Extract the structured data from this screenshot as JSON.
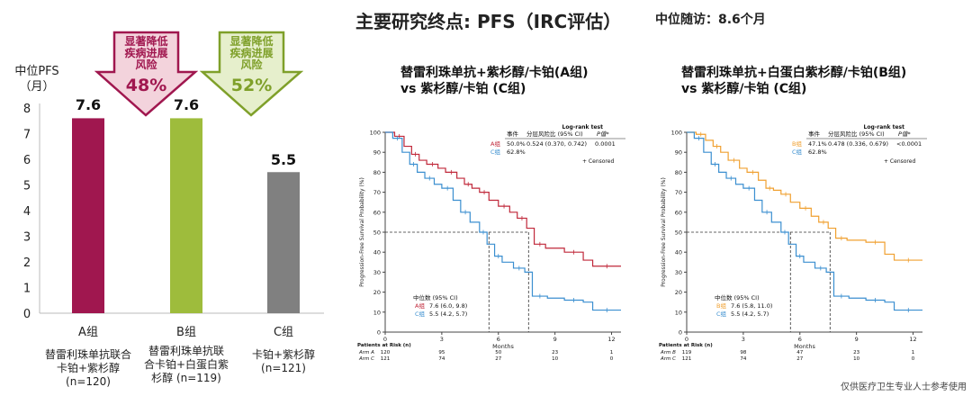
{
  "header": {
    "title": "主要研究终点: PFS（IRC评估）",
    "followup": "中位随访：8.6个月"
  },
  "bar_panel": {
    "ylabel_line1": "中位PFS",
    "ylabel_line2": "（月）",
    "arrows": [
      {
        "text1": "显著降低",
        "text2": "疾病进展",
        "text3": "风险",
        "pct": "48%",
        "color": "#a0174f",
        "fill": "#f3d3dc"
      },
      {
        "text1": "显著降低",
        "text2": "疾病进展",
        "text3": "风险",
        "pct": "52%",
        "color": "#7fa02a",
        "fill": "#e6efcc"
      }
    ],
    "groups": [
      {
        "label": "A组",
        "value_label": "7.6",
        "desc1": "替雷利珠单抗联合",
        "desc2": "卡铂+紫杉醇",
        "desc3": "(n=120)"
      },
      {
        "label": "B组",
        "value_label": "7.6",
        "desc1": "替雷利珠单抗联",
        "desc2": "合卡铂+白蛋白紫",
        "desc3": "杉醇 (n=119)"
      },
      {
        "label": "C组",
        "value_label": "5.5",
        "desc1": "卡铂+紫杉醇",
        "desc2": "(n=121)",
        "desc3": ""
      }
    ]
  },
  "chart_data": [
    {
      "type": "bar",
      "categories": [
        "A组",
        "B组",
        "C组"
      ],
      "values": [
        7.6,
        7.6,
        5.5
      ],
      "colors": [
        "#a0174f",
        "#9ebc3c",
        "#808080"
      ],
      "ylabel": "中位PFS（月）",
      "ylim": [
        0,
        8
      ],
      "yticks": [
        0,
        1,
        2,
        3,
        4,
        5,
        6,
        7,
        8
      ],
      "grid": false
    },
    {
      "type": "line",
      "title_line1": "替雷利珠单抗+紫杉醇/卡铂(A组)",
      "title_line2": "vs 紫杉醇/卡铂 (C组)",
      "xlabel": "Months",
      "ylabel": "Progression-Free Survival Probability (%)",
      "xlim": [
        0,
        12.5
      ],
      "ylim": [
        0,
        100
      ],
      "xticks": [
        0,
        3,
        6,
        9,
        12
      ],
      "yticks": [
        0,
        10,
        20,
        30,
        40,
        50,
        60,
        70,
        80,
        90,
        100
      ],
      "median_line_y": 50,
      "median_x": [
        5.5,
        7.6
      ],
      "stats_header": [
        "事件",
        "分层风险比 (95% CI)",
        "Log-rank test",
        "P值*"
      ],
      "stats_rows": [
        {
          "group": "A组",
          "events": "50.0%",
          "hr": "0.524 (0.370, 0.742)",
          "p": "0.0001"
        },
        {
          "group": "C组",
          "events": "62.8%",
          "hr": "",
          "p": ""
        }
      ],
      "censored_label": "Censored",
      "median_header": "中位数 (95% CI)",
      "median_rows": [
        {
          "group": "A组",
          "value": "7.6 (6.0, 9.8)"
        },
        {
          "group": "C组",
          "value": "5.5 (4.2, 5.7)"
        }
      ],
      "risk_header": "Patients at Risk (n)",
      "risk_rows": [
        {
          "name": "Arm A",
          "values": [
            "120",
            "95",
            "50",
            "23",
            "1"
          ]
        },
        {
          "name": "Arm C",
          "values": [
            "121",
            "74",
            "27",
            "10",
            "0"
          ]
        }
      ],
      "series": [
        {
          "name": "A组",
          "color": "#c0283a",
          "x": [
            0,
            0.5,
            1.0,
            1.4,
            1.8,
            2.2,
            2.8,
            3.2,
            3.8,
            4.2,
            4.6,
            5.0,
            5.5,
            6.0,
            6.6,
            7.0,
            7.5,
            7.9,
            8.5,
            9.5,
            10.5,
            11.0,
            12.5
          ],
          "y": [
            100,
            98,
            93,
            89,
            86,
            84,
            82,
            80,
            77,
            74,
            72,
            70,
            66,
            63,
            60,
            57,
            52,
            44,
            42,
            40,
            36,
            33,
            33
          ]
        },
        {
          "name": "C组",
          "color": "#3b8fd0",
          "x": [
            0,
            0.4,
            0.9,
            1.3,
            1.7,
            2.1,
            2.6,
            3.0,
            3.6,
            4.0,
            4.5,
            5.0,
            5.4,
            5.8,
            6.2,
            6.8,
            7.4,
            7.8,
            8.6,
            9.5,
            10.5,
            11.0,
            12.5
          ],
          "y": [
            100,
            97,
            90,
            84,
            80,
            77,
            74,
            72,
            66,
            60,
            55,
            50,
            44,
            38,
            35,
            32,
            30,
            18,
            17,
            16,
            15,
            11,
            11
          ]
        }
      ]
    },
    {
      "type": "line",
      "title_line1": "替雷利珠单抗+白蛋白紫杉醇/卡铂(B组)",
      "title_line2": "vs 紫杉醇/卡铂 (C组)",
      "xlabel": "Months",
      "ylabel": "Progression-Free Survival Probability (%)",
      "xlim": [
        0,
        12.5
      ],
      "ylim": [
        0,
        100
      ],
      "xticks": [
        0,
        3,
        6,
        9,
        12
      ],
      "yticks": [
        0,
        10,
        20,
        30,
        40,
        50,
        60,
        70,
        80,
        90,
        100
      ],
      "median_line_y": 50,
      "median_x": [
        5.5,
        7.6
      ],
      "stats_header": [
        "事件",
        "分层风险比 (95% CI)",
        "Log-rank test",
        "P值*"
      ],
      "stats_rows": [
        {
          "group": "B组",
          "events": "47.1%",
          "hr": "0.478 (0.336, 0.679)",
          "p": "<0.0001"
        },
        {
          "group": "C组",
          "events": "62.8%",
          "hr": "",
          "p": ""
        }
      ],
      "censored_label": "Censored",
      "median_header": "中位数 (95% CI)",
      "median_rows": [
        {
          "group": "B组",
          "value": "7.6 (5.8, 11.0)"
        },
        {
          "group": "C组",
          "value": "5.5 (4.2, 5.7)"
        }
      ],
      "risk_header": "Patients at Risk (n)",
      "risk_rows": [
        {
          "name": "Arm B",
          "values": [
            "119",
            "98",
            "47",
            "23",
            "1"
          ]
        },
        {
          "name": "Arm C",
          "values": [
            "121",
            "74",
            "27",
            "10",
            "0"
          ]
        }
      ],
      "series": [
        {
          "name": "B组",
          "color": "#f0a030",
          "x": [
            0,
            0.5,
            1.0,
            1.4,
            1.8,
            2.2,
            2.8,
            3.2,
            3.8,
            4.2,
            4.6,
            5.0,
            5.5,
            6.0,
            6.6,
            7.0,
            7.5,
            7.9,
            8.5,
            9.5,
            10.5,
            11.0,
            12.5
          ],
          "y": [
            100,
            99,
            96,
            93,
            90,
            86,
            82,
            80,
            76,
            72,
            71,
            69,
            65,
            62,
            58,
            55,
            52,
            47,
            46,
            45,
            39,
            36,
            36
          ]
        },
        {
          "name": "C组",
          "color": "#3b8fd0",
          "x": [
            0,
            0.4,
            0.9,
            1.3,
            1.7,
            2.1,
            2.6,
            3.0,
            3.6,
            4.0,
            4.5,
            5.0,
            5.4,
            5.8,
            6.2,
            6.8,
            7.4,
            7.8,
            8.6,
            9.5,
            10.5,
            11.0,
            12.5
          ],
          "y": [
            100,
            97,
            90,
            84,
            80,
            77,
            74,
            72,
            66,
            60,
            55,
            50,
            44,
            38,
            35,
            32,
            30,
            18,
            17,
            16,
            15,
            11,
            11
          ]
        }
      ]
    }
  ],
  "footer": "仅供医疗卫生专业人士参考使用"
}
